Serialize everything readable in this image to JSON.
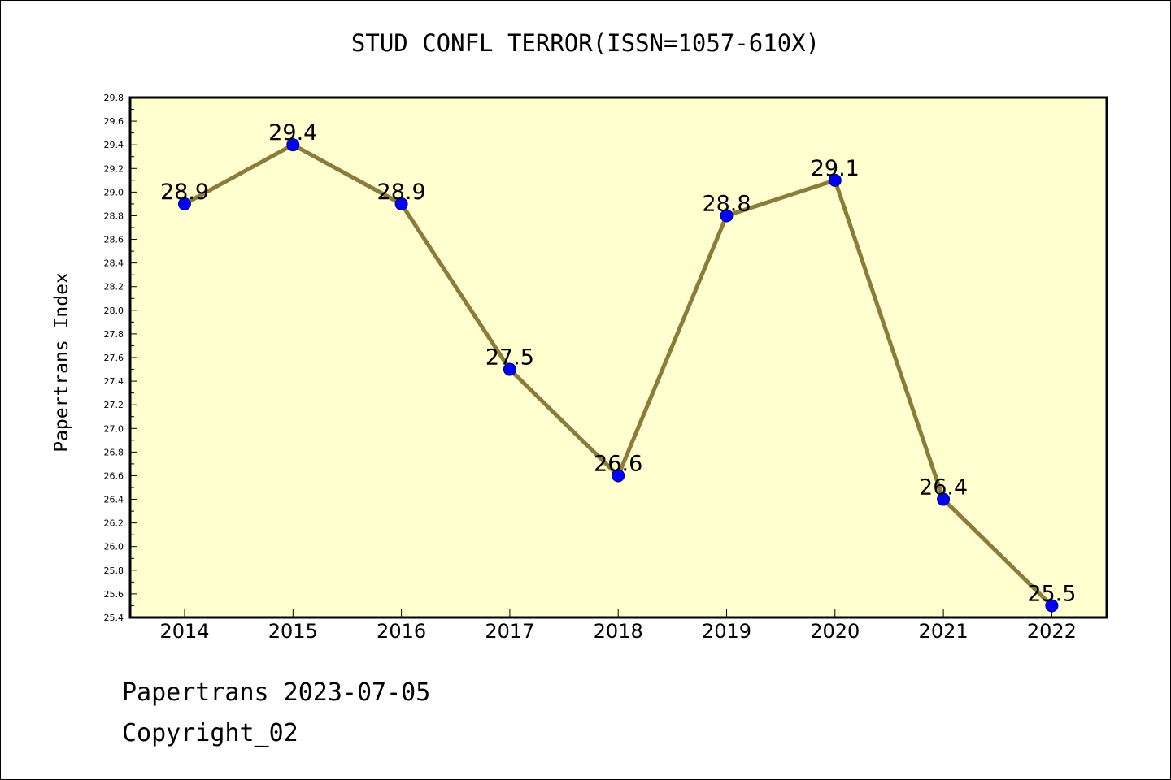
{
  "page": {
    "footer_line1": "Papertrans 2023-07-05",
    "footer_line2": "Copyright_02"
  },
  "colors": {
    "plot_background": "#ffffd0",
    "line": "#8c7c3a",
    "marker": "#0000ff",
    "marker_edge": "#000080"
  },
  "chart_data": {
    "type": "line",
    "title": "STUD CONFL TERROR(ISSN=1057-610X)",
    "xlabel": "",
    "ylabel": "Papertrans Index",
    "categories": [
      "2014",
      "2015",
      "2016",
      "2017",
      "2018",
      "2019",
      "2020",
      "2021",
      "2022"
    ],
    "series": [
      {
        "values": [
          28.9,
          29.4,
          28.9,
          27.5,
          26.6,
          28.8,
          29.1,
          26.4,
          25.5
        ]
      }
    ],
    "data_labels": [
      "28.9",
      "29.4",
      "28.9",
      "27.5",
      "26.6",
      "28.8",
      "29.1",
      "26.4",
      "25.5"
    ],
    "ylim": [
      25.4,
      29.8
    ],
    "yticks": [
      "25.4",
      "25.6",
      "25.8",
      "26.0",
      "26.2",
      "26.4",
      "26.6",
      "26.8",
      "27.0",
      "27.2",
      "27.4",
      "27.6",
      "27.8",
      "28.0",
      "28.2",
      "28.4",
      "28.6",
      "28.8",
      "29.0",
      "29.2",
      "29.4",
      "29.6",
      "29.8"
    ],
    "grid": false,
    "legend": "none"
  }
}
